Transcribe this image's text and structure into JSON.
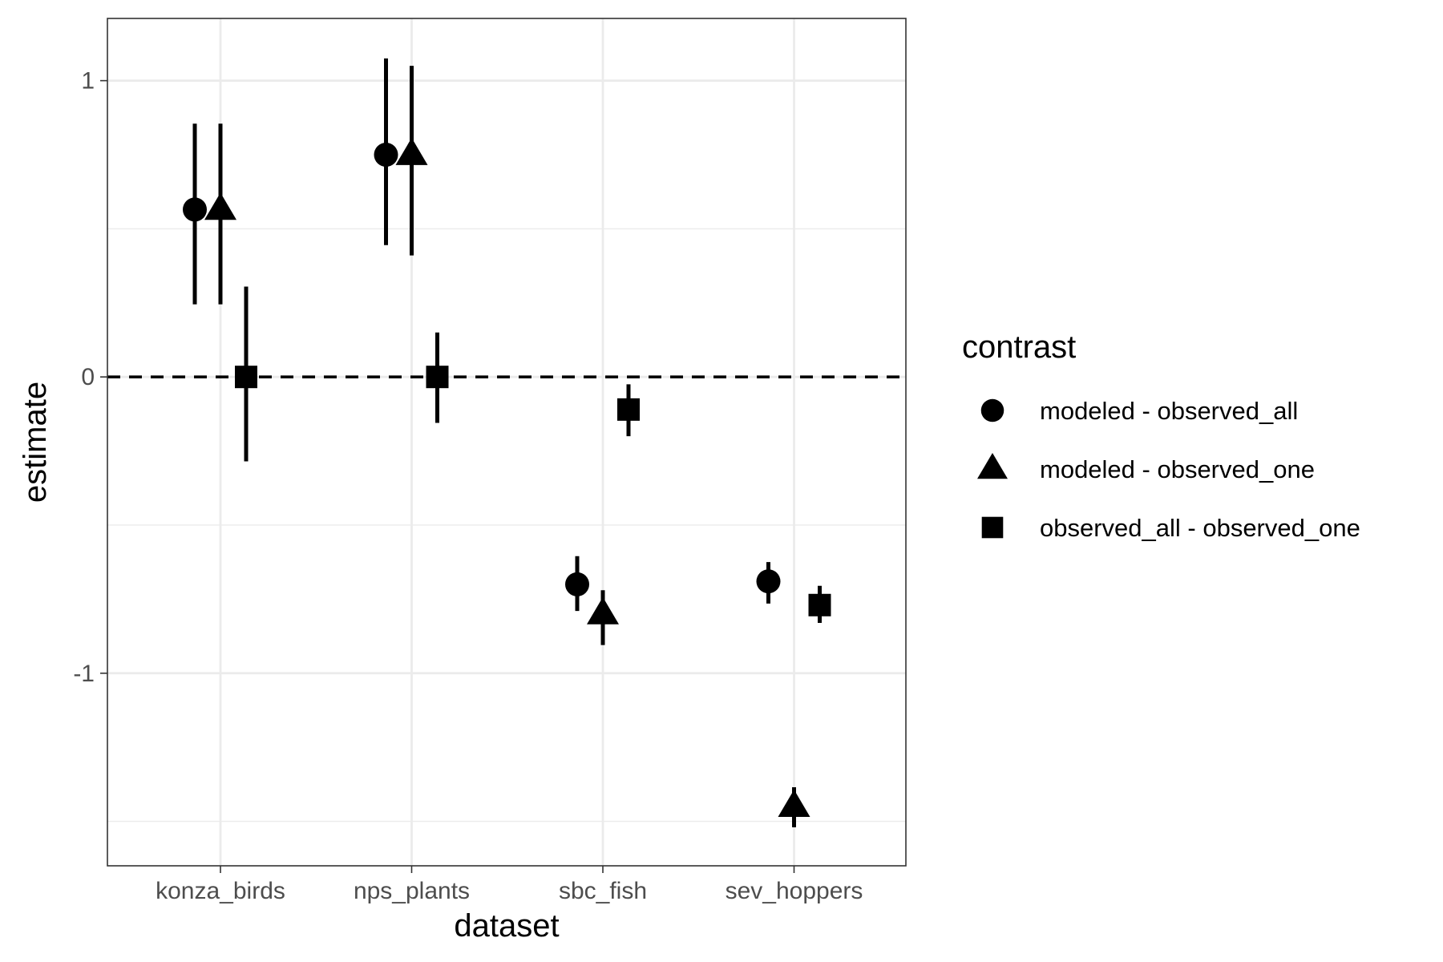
{
  "chart_data": {
    "type": "scatter",
    "title": "",
    "xlabel": "dataset",
    "ylabel": "estimate",
    "categories": [
      "konza_birds",
      "nps_plants",
      "sbc_fish",
      "sev_hoppers"
    ],
    "ylim": [
      -1.65,
      1.21
    ],
    "y_ticks": [
      1,
      0,
      -1
    ],
    "y_tick_labels": [
      "1",
      "0",
      "-1"
    ],
    "grid": true,
    "reference_line": {
      "y": 0,
      "style": "dashed"
    },
    "legend": {
      "title": "contrast",
      "position": "right"
    },
    "series": [
      {
        "name": "modeled - observed_all",
        "shape": "circle",
        "points": [
          {
            "category": "konza_birds",
            "estimate": 0.565,
            "low": 0.245,
            "high": 0.855
          },
          {
            "category": "nps_plants",
            "estimate": 0.75,
            "low": 0.445,
            "high": 1.075
          },
          {
            "category": "sbc_fish",
            "estimate": -0.7,
            "low": -0.79,
            "high": -0.605
          },
          {
            "category": "sev_hoppers",
            "estimate": -0.69,
            "low": -0.765,
            "high": -0.625
          }
        ]
      },
      {
        "name": "modeled - observed_one",
        "shape": "triangle",
        "points": [
          {
            "category": "konza_birds",
            "estimate": 0.565,
            "low": 0.245,
            "high": 0.855
          },
          {
            "category": "nps_plants",
            "estimate": 0.75,
            "low": 0.41,
            "high": 1.05
          },
          {
            "category": "sbc_fish",
            "estimate": -0.8,
            "low": -0.905,
            "high": -0.72
          },
          {
            "category": "sev_hoppers",
            "estimate": -1.45,
            "low": -1.52,
            "high": -1.385
          }
        ]
      },
      {
        "name": "observed_all - observed_one",
        "shape": "square",
        "points": [
          {
            "category": "konza_birds",
            "estimate": 0.0,
            "low": -0.285,
            "high": 0.305
          },
          {
            "category": "nps_plants",
            "estimate": 0.0,
            "low": -0.155,
            "high": 0.15
          },
          {
            "category": "sbc_fish",
            "estimate": -0.11,
            "low": -0.2,
            "high": -0.025
          },
          {
            "category": "sev_hoppers",
            "estimate": -0.77,
            "low": -0.83,
            "high": -0.705
          }
        ]
      }
    ]
  }
}
